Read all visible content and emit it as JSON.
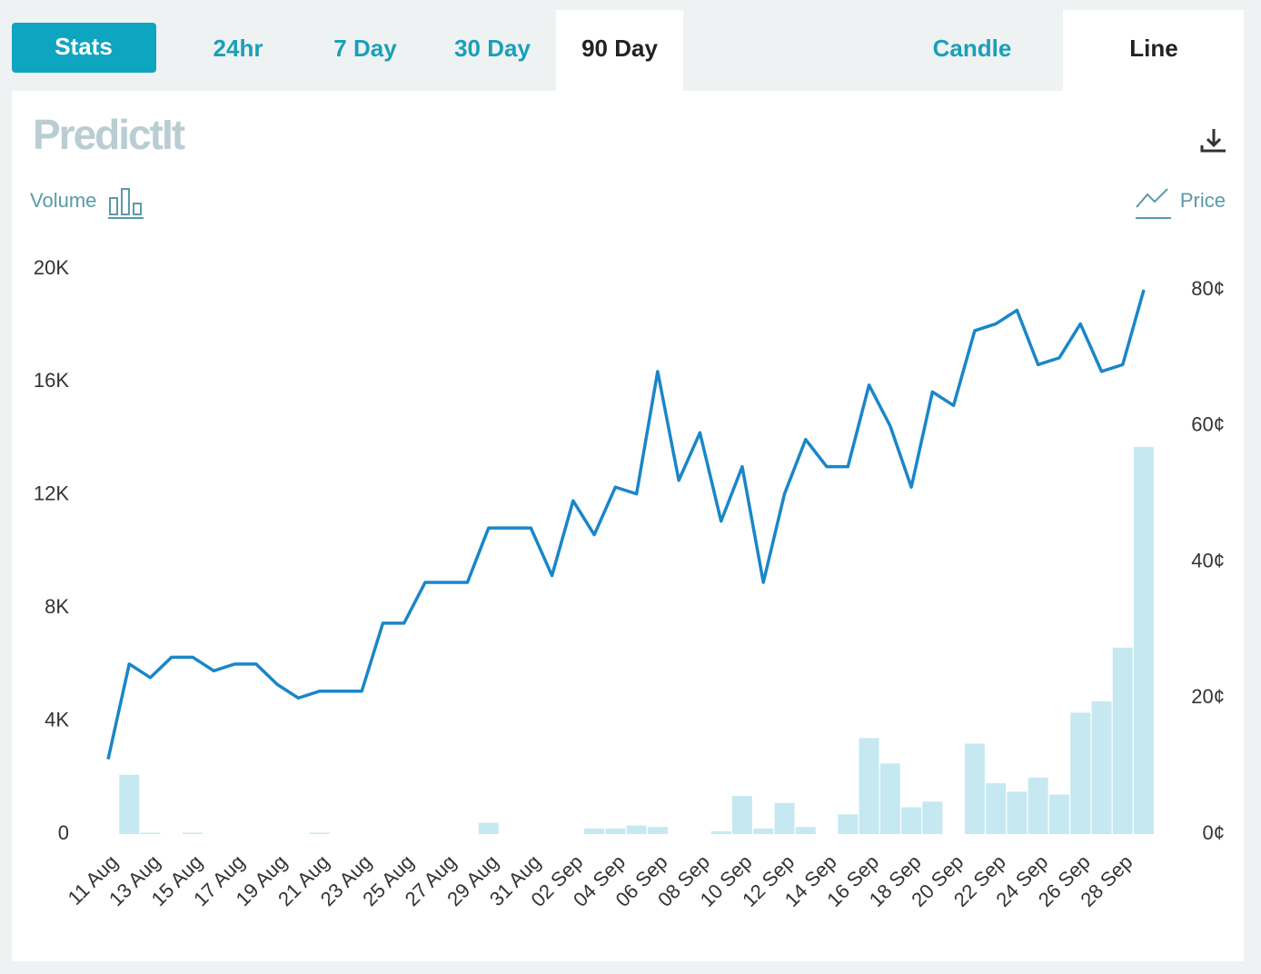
{
  "tabs": [
    "Stats",
    "24hr",
    "7 Day",
    "30 Day",
    "90 Day"
  ],
  "chart_modes": [
    "Candle",
    "Line"
  ],
  "logo": "PredictIt",
  "chart_data": {
    "type": "combo",
    "categories": [
      "11 Aug",
      null,
      "13 Aug",
      null,
      "15 Aug",
      null,
      "17 Aug",
      null,
      "19 Aug",
      null,
      "21 Aug",
      null,
      "23 Aug",
      null,
      "25 Aug",
      null,
      "27 Aug",
      null,
      "29 Aug",
      null,
      "31 Aug",
      null,
      "02 Sep",
      null,
      "04 Sep",
      null,
      "06 Sep",
      null,
      "08 Sep",
      null,
      "10 Sep",
      null,
      "12 Sep",
      null,
      "14 Sep",
      null,
      "16 Sep",
      null,
      "18 Sep",
      null,
      "20 Sep",
      null,
      "22 Sep",
      null,
      "24 Sep",
      null,
      "26 Sep",
      null,
      "28 Sep",
      null
    ],
    "series": [
      {
        "name": "Volume",
        "type": "bar",
        "axis": "y",
        "color": "#c6e9f1",
        "values": [
          0,
          2100,
          50,
          0,
          50,
          0,
          0,
          0,
          0,
          0,
          50,
          0,
          0,
          0,
          0,
          0,
          0,
          0,
          400,
          0,
          0,
          0,
          0,
          200,
          200,
          300,
          250,
          0,
          0,
          100,
          1350,
          200,
          1100,
          250,
          0,
          700,
          3400,
          2500,
          950,
          1150,
          0,
          3200,
          1800,
          1500,
          2000,
          1400,
          4300,
          4700,
          6600,
          13700
        ]
      },
      {
        "name": "Price",
        "type": "line",
        "axis": "y2",
        "color": "#1a86c8",
        "values": [
          11,
          25,
          23,
          26,
          26,
          24,
          25,
          25,
          22,
          20,
          21,
          21,
          21,
          31,
          31,
          37,
          37,
          37,
          45,
          45,
          45,
          38,
          49,
          44,
          51,
          50,
          68,
          52,
          59,
          46,
          54,
          37,
          50,
          58,
          54,
          54,
          66,
          60,
          51,
          65,
          63,
          74,
          75,
          77,
          69,
          70,
          75,
          68,
          69,
          80
        ]
      }
    ],
    "ylim": [
      0,
      20000
    ],
    "yticks": [
      0,
      {
        "value": 4000,
        "label": "4K"
      },
      {
        "value": 8000,
        "label": "8K"
      },
      {
        "value": 12000,
        "label": "12K"
      },
      {
        "value": 16000,
        "label": "16K"
      },
      {
        "value": 20000,
        "label": "20K"
      }
    ],
    "y2lim": [
      0,
      80
    ],
    "y2ticks": [
      {
        "value": 0,
        "label": "0¢"
      },
      {
        "value": 20,
        "label": "20¢"
      },
      {
        "value": 40,
        "label": "40¢"
      },
      {
        "value": 60,
        "label": "60¢"
      },
      {
        "value": 80,
        "label": "80¢"
      }
    ]
  }
}
